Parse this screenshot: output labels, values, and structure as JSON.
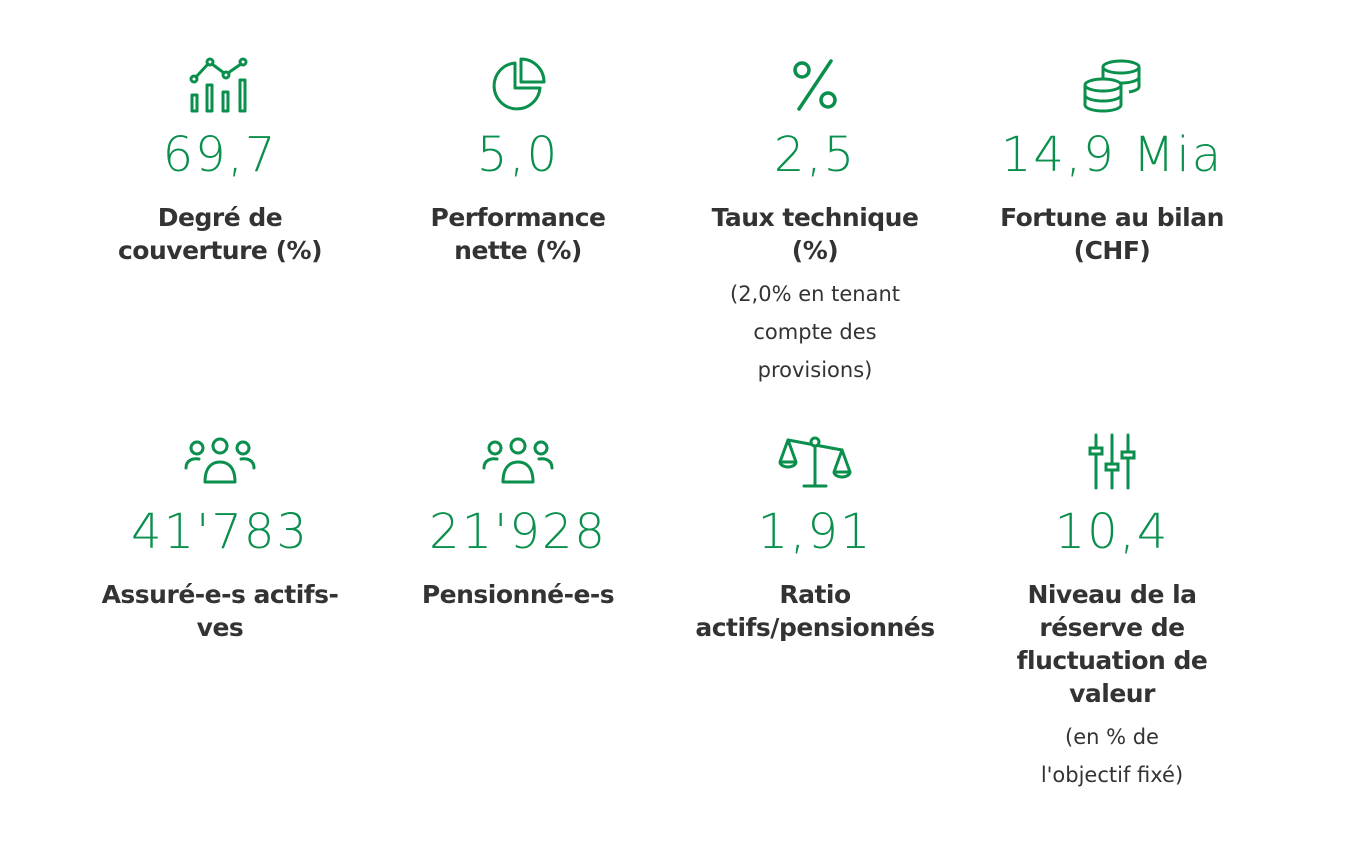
{
  "stats": [
    {
      "icon": "line-bar-chart-icon",
      "value": "69,7",
      "label": "Degré de couverture (%)",
      "note": ""
    },
    {
      "icon": "pie-chart-icon",
      "value": "5,0",
      "label": "Performance nette (%)",
      "note": ""
    },
    {
      "icon": "percent-icon",
      "value": "2,5",
      "label": "Taux technique (%)",
      "note": "(2,0% en tenant compte des provisions)"
    },
    {
      "icon": "coins-stack-icon",
      "value": "14,9 Mia",
      "label": "Fortune au bilan (CHF)",
      "note": ""
    },
    {
      "icon": "people-group-icon",
      "value": "41'783",
      "label": "Assuré-e-s actifs-ves",
      "note": ""
    },
    {
      "icon": "people-group-icon",
      "value": "21'928",
      "label": "Pensionné-e-s",
      "note": ""
    },
    {
      "icon": "balance-scale-icon",
      "value": "1,91",
      "label": "Ratio actifs/pensionnés",
      "note": ""
    },
    {
      "icon": "sliders-icon",
      "value": "10,4",
      "label": "Niveau de la réserve de fluctuation de valeur",
      "note": "(en % de l'objectif fixé)"
    }
  ],
  "colors": {
    "accent": "#0a8f4c",
    "text": "#333333"
  }
}
